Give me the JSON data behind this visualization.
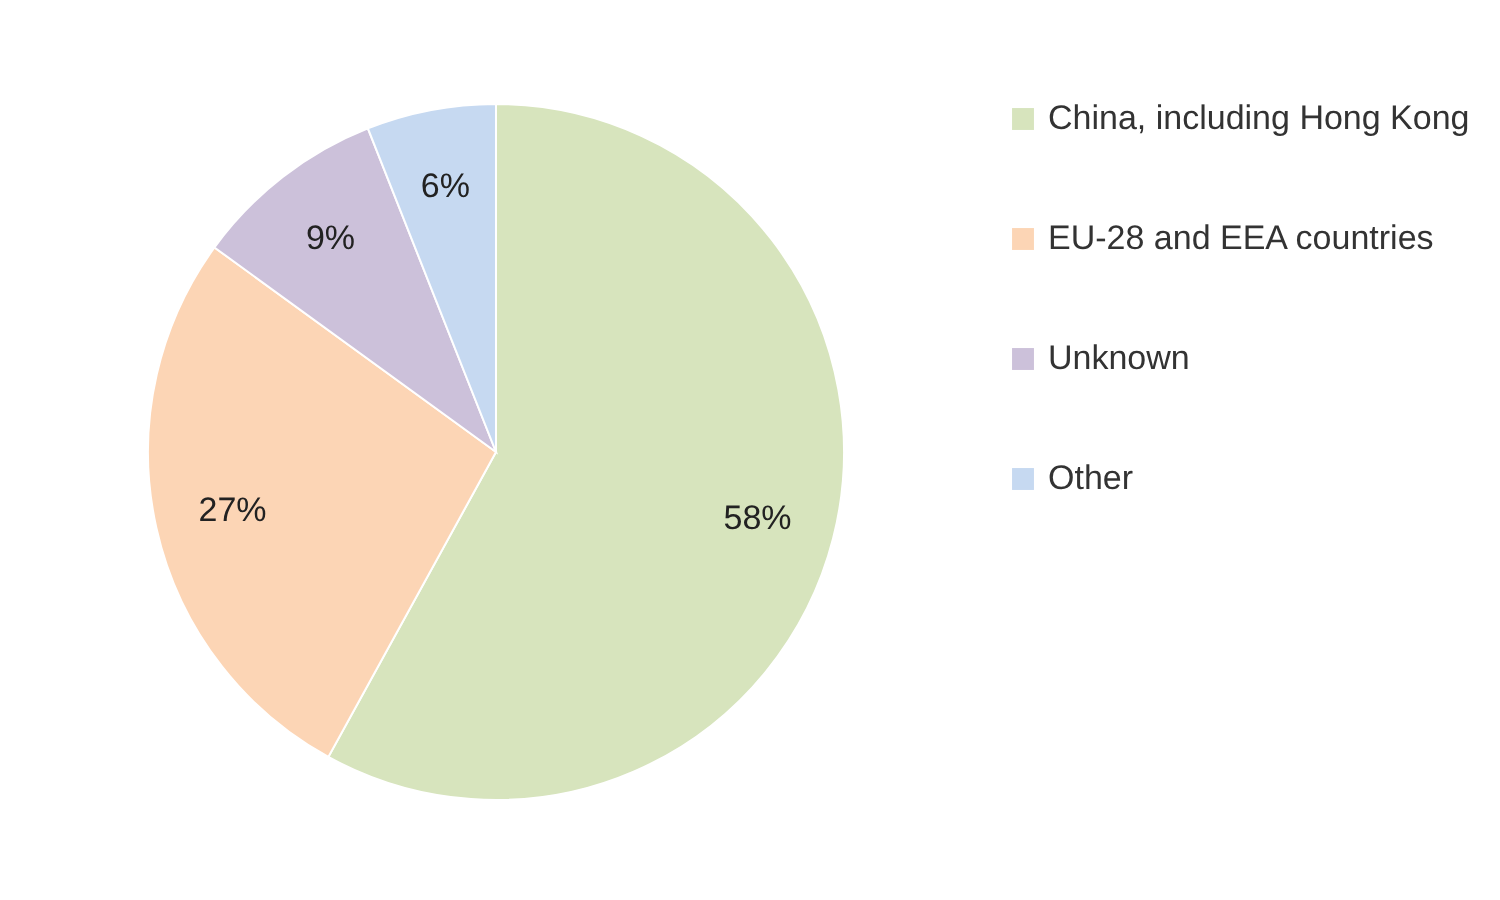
{
  "chart_data": {
    "type": "pie",
    "categories": [
      "China, including Hong Kong",
      "EU-28 and EEA countries",
      "Unknown",
      "Other"
    ],
    "values": [
      58,
      27,
      9,
      6
    ],
    "colors": [
      "#d7e4bd",
      "#fcd5b5",
      "#ccc1da",
      "#c6d9f1"
    ],
    "value_labels": [
      "58%",
      "27%",
      "9%",
      "6%"
    ],
    "legend": "right"
  }
}
